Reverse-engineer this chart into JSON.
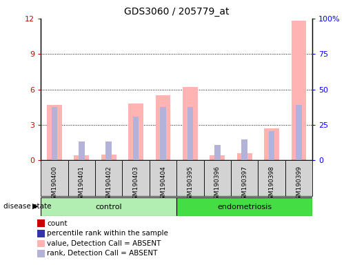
{
  "title": "GDS3060 / 205779_at",
  "samples": [
    "GSM190400",
    "GSM190401",
    "GSM190402",
    "GSM190403",
    "GSM190404",
    "GSM190395",
    "GSM190396",
    "GSM190397",
    "GSM190398",
    "GSM190399"
  ],
  "n_control": 5,
  "n_endo": 5,
  "value_absent": [
    4.7,
    0.4,
    0.5,
    4.8,
    5.5,
    6.2,
    0.4,
    0.6,
    2.7,
    11.8
  ],
  "rank_absent": [
    4.5,
    1.6,
    1.6,
    3.7,
    4.5,
    4.5,
    1.3,
    1.8,
    2.5,
    4.7
  ],
  "left_ylim": [
    0,
    12
  ],
  "left_yticks": [
    0,
    3,
    6,
    9,
    12
  ],
  "right_ytick_labels": [
    "0",
    "25",
    "50",
    "75",
    "100%"
  ],
  "color_value_absent": "#ffb3b3",
  "color_rank_absent": "#b3b3d9",
  "color_count": "#cc0000",
  "color_percentile": "#3333aa",
  "group_control_color": "#b2eeb2",
  "group_endo_color": "#44dd44",
  "legend_items": [
    {
      "label": "count",
      "color": "#cc0000"
    },
    {
      "label": "percentile rank within the sample",
      "color": "#3333aa"
    },
    {
      "label": "value, Detection Call = ABSENT",
      "color": "#ffb3b3"
    },
    {
      "label": "rank, Detection Call = ABSENT",
      "color": "#b3b3d9"
    }
  ]
}
